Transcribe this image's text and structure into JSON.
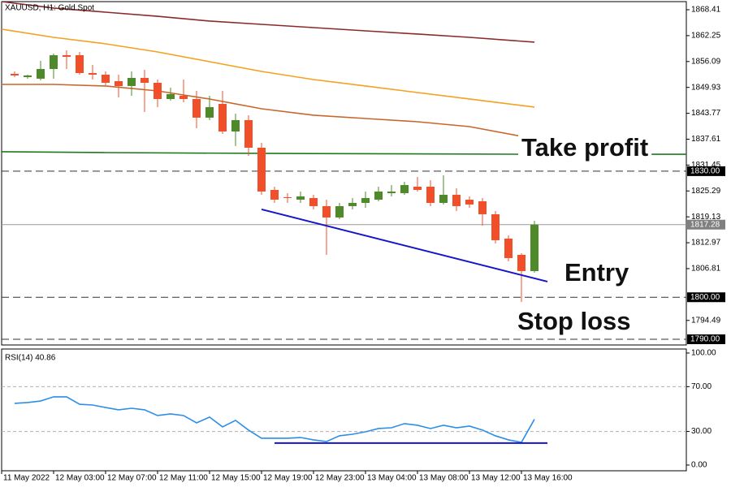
{
  "chart_data": [
    {
      "type": "candlestick",
      "title": "XAUUSD, H1:  Gold Spot",
      "categories": [
        "11 May 2022",
        null,
        null,
        null,
        "12 May 03:00",
        null,
        null,
        null,
        "12 May 07:00",
        null,
        null,
        null,
        "12 May 11:00",
        null,
        null,
        null,
        "12 May 15:00",
        null,
        null,
        null,
        "12 May 19:00",
        null,
        null,
        null,
        "12 May 23:00",
        null,
        null,
        null,
        "13 May 04:00",
        null,
        null,
        null,
        "13 May 08:00",
        null,
        null,
        null,
        "13 May 12:00",
        null,
        null,
        null,
        "13 May 16:00"
      ],
      "open": [
        1853.16,
        1852.38,
        1852.0,
        1854.31,
        1857.6,
        1857.6,
        1853.35,
        1852.96,
        1851.42,
        1850.26,
        1852.19,
        1851.03,
        1847.17,
        1847.94,
        1847.17,
        1842.73,
        1846.01,
        1839.44,
        1842.15,
        1835.58,
        1825.54,
        1823.8,
        1823.22,
        1823.61,
        1821.68,
        1818.98,
        1821.68,
        1822.45,
        1823.22,
        1824.77,
        1824.77,
        1826.31,
        1826.31,
        1822.45,
        1824.38,
        1823.22,
        1822.84,
        1819.75,
        1813.96,
        1810.09,
        1806.23
      ],
      "high": [
        1853.73,
        1852.96,
        1856.24,
        1857.98,
        1858.75,
        1858.37,
        1855.28,
        1853.73,
        1852.96,
        1853.73,
        1854.12,
        1851.8,
        1849.87,
        1851.8,
        1849.1,
        1847.94,
        1849.1,
        1843.69,
        1843.31,
        1836.74,
        1826.31,
        1824.77,
        1825.16,
        1824.38,
        1823.22,
        1822.45,
        1823.61,
        1825.16,
        1826.31,
        1826.7,
        1827.47,
        1828.63,
        1827.86,
        1829.02,
        1825.93,
        1824.0,
        1823.61,
        1820.52,
        1814.73,
        1810.48,
        1818.2
      ],
      "low": [
        1852.38,
        1852.0,
        1851.61,
        1852.0,
        1854.31,
        1852.96,
        1851.8,
        1850.45,
        1847.56,
        1847.94,
        1844.08,
        1845.24,
        1846.78,
        1846.4,
        1840.22,
        1842.15,
        1838.87,
        1835.97,
        1833.65,
        1824.38,
        1822.45,
        1822.45,
        1822.45,
        1820.91,
        1810.09,
        1818.59,
        1820.91,
        1821.29,
        1822.84,
        1824.0,
        1824.38,
        1825.16,
        1821.68,
        1822.07,
        1820.52,
        1821.29,
        1817.05,
        1812.8,
        1808.55,
        1798.89,
        1805.85
      ],
      "close": [
        1852.77,
        1852.77,
        1854.31,
        1857.6,
        1857.21,
        1853.35,
        1852.96,
        1851.03,
        1850.26,
        1852.19,
        1851.03,
        1847.17,
        1848.33,
        1847.17,
        1842.73,
        1845.24,
        1839.44,
        1842.15,
        1835.58,
        1825.16,
        1823.22,
        1823.61,
        1824.0,
        1821.68,
        1818.98,
        1821.68,
        1822.45,
        1823.61,
        1825.16,
        1825.16,
        1826.7,
        1825.54,
        1822.45,
        1824.38,
        1821.68,
        1822.07,
        1819.75,
        1813.57,
        1809.32,
        1806.23,
        1817.28
      ],
      "up_color": "#4e8a2a",
      "down_color": "#f04f2a",
      "ylim": [
        1788.65,
        1870.34
      ],
      "yticks": [
        1868.41,
        1862.25,
        1856.09,
        1849.93,
        1843.77,
        1837.61,
        1831.45,
        1825.29,
        1819.13,
        1812.97,
        1806.81,
        1794.49
      ],
      "lines": [
        {
          "color": "#8b2a2a",
          "x": [
            -1,
            3,
            7,
            11,
            15,
            19,
            23,
            27,
            31,
            35,
            40
          ],
          "values": [
            1870.34,
            1868.8,
            1867.83,
            1866.86,
            1865.71,
            1864.93,
            1864.16,
            1863.39,
            1862.62,
            1861.84,
            1860.69
          ]
        },
        {
          "color": "#f5a01e",
          "x": [
            -1,
            3,
            7,
            11,
            15,
            19,
            23,
            27,
            31,
            35,
            40
          ],
          "values": [
            1863.78,
            1861.84,
            1860.3,
            1858.37,
            1856.05,
            1853.73,
            1851.8,
            1850.26,
            1848.71,
            1847.17,
            1845.24
          ]
        },
        {
          "color": "#c8662a",
          "x": [
            -1,
            3,
            7,
            11,
            15,
            19,
            23,
            27,
            31,
            35,
            39
          ],
          "values": [
            1850.64,
            1850.64,
            1850.26,
            1849.1,
            1847.17,
            1844.85,
            1843.31,
            1842.53,
            1841.76,
            1840.6,
            1838.29
          ]
        },
        {
          "color": "#1f7a1f",
          "x": [
            -1,
            7,
            19,
            39,
            52
          ],
          "values": [
            1834.62,
            1834.42,
            1834.23,
            1834.03,
            1834.03
          ]
        }
      ],
      "trendline": {
        "color": "#1515c8",
        "x": [
          19,
          41
        ],
        "values": [
          1820.91,
          1803.72
        ]
      },
      "levels": [
        {
          "value": 1830,
          "label": "1830.00",
          "style": "dashed",
          "box": "#000000"
        },
        {
          "value": 1817.28,
          "label": "1817.28",
          "style": "solid",
          "box": "#808080"
        },
        {
          "value": 1800,
          "label": "1800.00",
          "style": "dashed",
          "box": "#000000"
        },
        {
          "value": 1790,
          "label": "1790.00",
          "style": "dashed",
          "box": "#000000"
        }
      ],
      "annotations": [
        "Take profit",
        "Entry",
        "Stop loss"
      ]
    },
    {
      "type": "line",
      "title": "RSI(14) 40.86",
      "color": "#2d8ee8",
      "values": [
        55.1,
        55.8,
        57.2,
        60.9,
        60.9,
        54.3,
        53.6,
        51.4,
        49.3,
        50.7,
        49.3,
        44.2,
        45.7,
        44.2,
        37.7,
        42.8,
        34.1,
        39.9,
        31.2,
        23.9,
        23.9,
        23.9,
        24.6,
        22.5,
        21.0,
        26.1,
        27.5,
        29.7,
        32.6,
        33.3,
        37.0,
        35.5,
        32.6,
        35.5,
        33.3,
        34.8,
        31.2,
        26.1,
        22.5,
        20.3,
        40.86
      ],
      "ylim": [
        -5.1,
        103.6
      ],
      "yticks": [
        {
          "value": 100,
          "label": "100.00"
        },
        {
          "value": 70,
          "label": "70.00"
        },
        {
          "value": 30,
          "label": "30.00"
        },
        {
          "value": 0,
          "label": "0.00"
        }
      ],
      "levels": [
        70,
        30
      ],
      "trendline": {
        "color": "#1515c8",
        "x": [
          20,
          41
        ],
        "values": [
          19.6,
          19.6
        ]
      }
    }
  ]
}
